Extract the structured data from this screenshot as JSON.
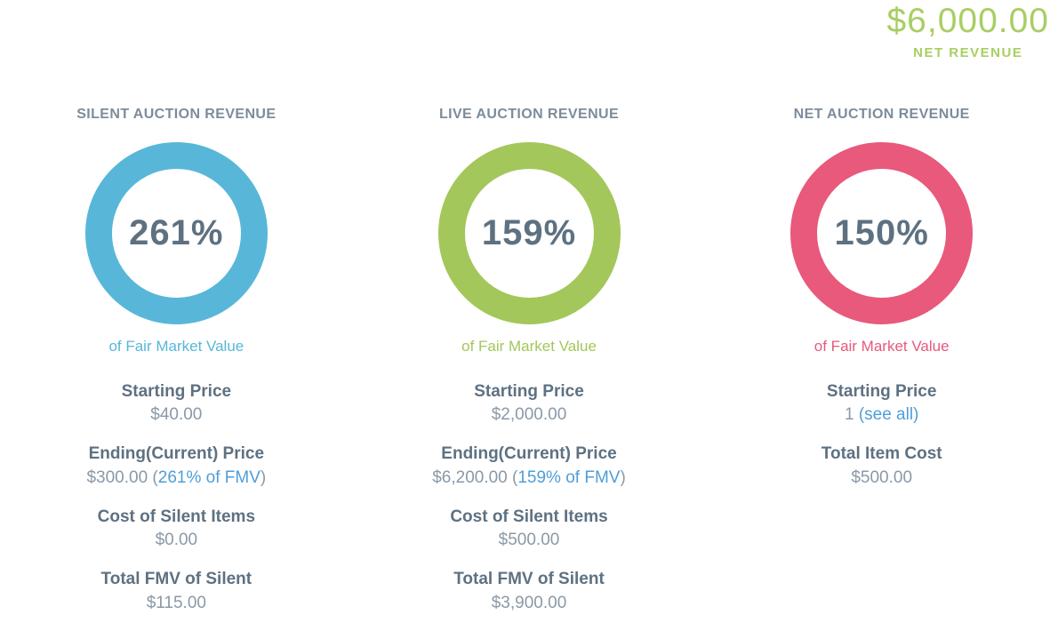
{
  "summary": {
    "amount": "$6,000.00",
    "label": "NET REVENUE",
    "color": "#a8ce63"
  },
  "link_color": "#4f9ed7",
  "columns": [
    {
      "header": "SILENT AUCTION REVENUE",
      "percent": "261%",
      "ring_color": "#58b7d9",
      "fmv_caption": "of Fair Market Value",
      "fmv_color": "#58b7d9",
      "rows": [
        {
          "label": "Starting Price",
          "value": "$40.00"
        },
        {
          "label": "Ending(Current) Price",
          "value_pre": "$300.00 (",
          "value_link": "261% of FMV",
          "value_post": ")"
        },
        {
          "label": "Cost of Silent Items",
          "value": "$0.00"
        },
        {
          "label": "Total FMV of Silent",
          "value": "$115.00"
        }
      ]
    },
    {
      "header": "LIVE AUCTION REVENUE",
      "percent": "159%",
      "ring_color": "#a3c75a",
      "fmv_caption": "of Fair Market Value",
      "fmv_color": "#a3c75a",
      "rows": [
        {
          "label": "Starting Price",
          "value": "$2,000.00"
        },
        {
          "label": "Ending(Current) Price",
          "value_pre": "$6,200.00 (",
          "value_link": "159% of FMV",
          "value_post": ")"
        },
        {
          "label": "Cost of Silent Items",
          "value": "$500.00"
        },
        {
          "label": "Total FMV of Silent",
          "value": "$3,900.00"
        }
      ]
    },
    {
      "header": "NET AUCTION REVENUE",
      "percent": "150%",
      "ring_color": "#e8597c",
      "fmv_caption": "of Fair Market Value",
      "fmv_color": "#e8597c",
      "rows": [
        {
          "label": "Starting Price",
          "value_pre": "1 ",
          "value_link": "(see all)",
          "value_post": ""
        },
        {
          "label": "Total Item Cost",
          "value": "$500.00"
        }
      ]
    }
  ]
}
